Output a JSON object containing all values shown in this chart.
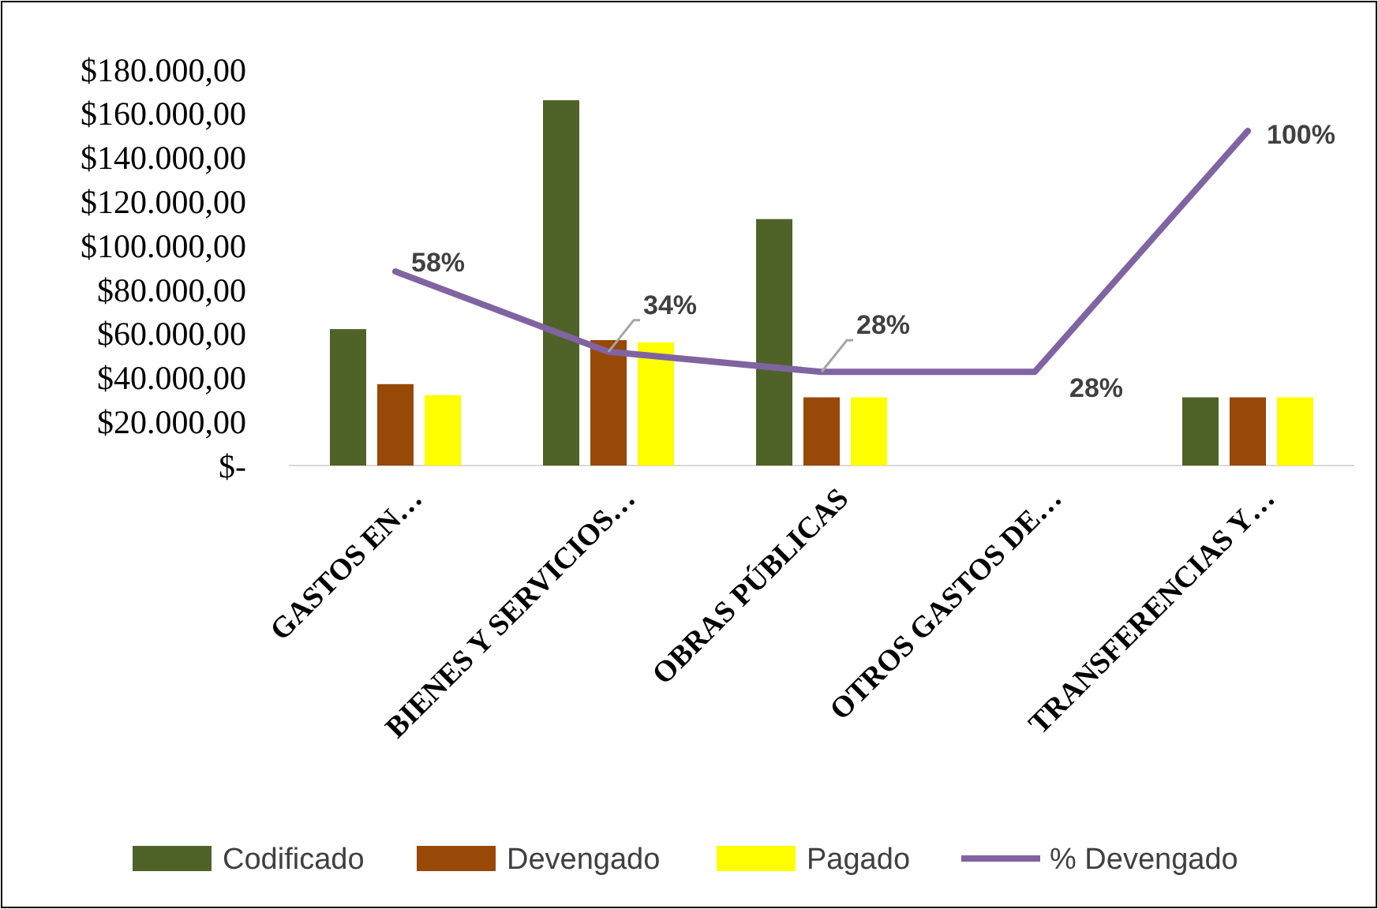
{
  "chart_data": {
    "type": "bar",
    "categories": [
      "GASTOS EN…",
      "BIENES Y SERVICIOS…",
      "OBRAS PÚBLICAS",
      "OTROS GASTOS DE…",
      "TRANSFERENCIAS Y…"
    ],
    "series": [
      {
        "name": "Codificado",
        "color": "#4f6228",
        "values": [
          62000,
          166000,
          112000,
          0,
          31000
        ]
      },
      {
        "name": "Devengado",
        "color": "#984807",
        "values": [
          37000,
          57000,
          31000,
          0,
          31000
        ]
      },
      {
        "name": "Pagado",
        "color": "#ffff00",
        "values": [
          32000,
          56000,
          31000,
          0,
          31000
        ]
      },
      {
        "name": "% Devengado",
        "type": "line",
        "axis": "y2",
        "color": "#8064a2",
        "values": [
          58,
          34,
          28,
          28,
          100
        ],
        "value_labels": [
          "58%",
          "34%",
          "28%",
          "28%",
          "100%"
        ]
      }
    ],
    "ylim": [
      0,
      180000
    ],
    "yticks": [
      {
        "value": 0,
        "label": "$-"
      },
      {
        "value": 20000,
        "label": "$20.000,00"
      },
      {
        "value": 40000,
        "label": "$40.000,00"
      },
      {
        "value": 60000,
        "label": "$60.000,00"
      },
      {
        "value": 80000,
        "label": "$80.000,00"
      },
      {
        "value": 100000,
        "label": "$100.000,00"
      },
      {
        "value": 120000,
        "label": "$120.000,00"
      },
      {
        "value": 140000,
        "label": "$140.000,00"
      },
      {
        "value": 160000,
        "label": "$160.000,00"
      },
      {
        "value": 180000,
        "label": "$180.000,00"
      }
    ],
    "legend": "bottom"
  }
}
